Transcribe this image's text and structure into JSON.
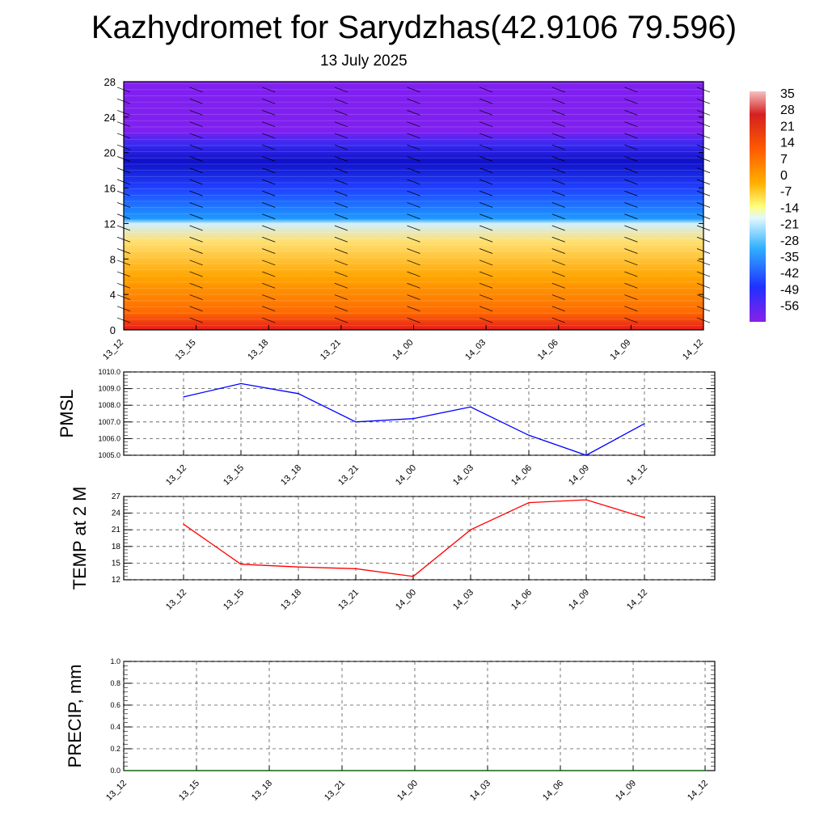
{
  "title": "Kazhydromet for Sarydzhas(42.9106 79.596)",
  "subtitle": "13 July 2025",
  "chart_data": [
    {
      "type": "heatmap",
      "title": "",
      "xlabel": "",
      "ylabel": "",
      "x_ticks": [
        "13_12",
        "13_15",
        "13_18",
        "13_21",
        "14_00",
        "14_03",
        "14_06",
        "14_09",
        "14_12"
      ],
      "y_ticks": [
        "0",
        "4",
        "8",
        "12",
        "16",
        "20",
        "24",
        "28"
      ],
      "ylim": [
        0,
        28
      ],
      "colorbar": {
        "labels": [
          "35",
          "28",
          "21",
          "14",
          "7",
          "0",
          "-7",
          "-14",
          "-21",
          "-28",
          "-35",
          "-42",
          "-49",
          "-56"
        ],
        "range": [
          -60,
          38
        ]
      },
      "bands": [
        {
          "to": 2,
          "value": 30
        },
        {
          "to": 6,
          "value": 21
        },
        {
          "to": 10,
          "value": 7
        },
        {
          "to": 12,
          "value": -5
        },
        {
          "to": 12.5,
          "value": -14
        },
        {
          "to": 16,
          "value": -30
        },
        {
          "to": 19,
          "value": -45
        },
        {
          "to": 21,
          "value": -56
        },
        {
          "to": 22.5,
          "value": -49
        },
        {
          "to": 28,
          "value": -60
        }
      ],
      "colors": [
        "#e41a1c",
        "#ff6a00",
        "#ffa500",
        "#ffe070",
        "#d0f0ff",
        "#1e9bff",
        "#2040ff",
        "#1010c8",
        "#3a2af0",
        "#8020f0"
      ]
    },
    {
      "type": "line",
      "ylabel": "PMSL",
      "x": [
        "13_12",
        "13_15",
        "13_18",
        "13_21",
        "14_00",
        "14_03",
        "14_06",
        "14_09",
        "14_12"
      ],
      "y_ticks": [
        "1005.0",
        "1006.0",
        "1007.0",
        "1008.0",
        "1009.0",
        "1010.0"
      ],
      "ylim": [
        1005,
        1010
      ],
      "series": [
        {
          "values": [
            1008.5,
            1009.3,
            1008.7,
            1007.0,
            1007.2,
            1007.9,
            1006.2,
            1005.0,
            1006.9
          ],
          "color": "#0000ff"
        }
      ]
    },
    {
      "type": "line",
      "ylabel": "TEMP at 2 M",
      "x": [
        "13_12",
        "13_15",
        "13_18",
        "13_21",
        "14_00",
        "14_03",
        "14_06",
        "14_09",
        "14_12"
      ],
      "y_ticks": [
        "12",
        "15",
        "18",
        "21",
        "24",
        "27"
      ],
      "ylim": [
        12,
        27
      ],
      "series": [
        {
          "values": [
            22.0,
            14.8,
            14.3,
            14.0,
            12.6,
            21.0,
            25.9,
            26.4,
            23.2
          ],
          "color": "#ff0000"
        }
      ]
    },
    {
      "type": "line",
      "ylabel": "PRECIP, mm",
      "x_ticks": [
        "13_12",
        "13_15",
        "13_18",
        "13_21",
        "14_00",
        "14_03",
        "14_06",
        "14_09",
        "14_12"
      ],
      "y_ticks": [
        "0.0",
        "0.2",
        "0.4",
        "0.6",
        "0.8",
        "1.0"
      ],
      "ylim": [
        0,
        1
      ],
      "series": [
        {
          "values": [
            0,
            0,
            0,
            0,
            0,
            0,
            0,
            0,
            0
          ],
          "color": "#006400"
        }
      ]
    }
  ]
}
